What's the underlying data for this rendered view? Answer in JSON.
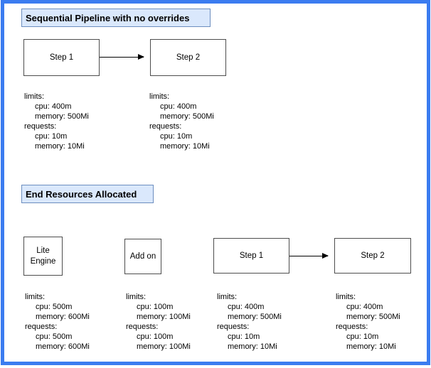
{
  "diagram": {
    "frame_color": "#3b7cf0",
    "title_fill": "#dae8fc",
    "title_border": "#6c8ebf",
    "node_border": "#4d4d4d"
  },
  "section1": {
    "title": "Sequential Pipeline with no overrides",
    "boxes": [
      {
        "label": "Step 1"
      },
      {
        "label": "Step 2"
      }
    ],
    "resources": [
      {
        "limits_label": "limits:",
        "limits": [
          "cpu: 400m",
          "memory: 500Mi"
        ],
        "requests_label": "requests:",
        "requests": [
          "cpu: 10m",
          "memory: 10Mi"
        ]
      },
      {
        "limits_label": "limits:",
        "limits": [
          "cpu: 400m",
          "memory: 500Mi"
        ],
        "requests_label": "requests:",
        "requests": [
          "cpu: 10m",
          "memory: 10Mi"
        ]
      }
    ]
  },
  "section2": {
    "title": "End Resources Allocated",
    "boxes": [
      {
        "label": "Lite Engine"
      },
      {
        "label": "Add on"
      },
      {
        "label": "Step 1"
      },
      {
        "label": "Step 2"
      }
    ],
    "resources": [
      {
        "limits_label": "limits:",
        "limits": [
          "cpu: 500m",
          "memory: 600Mi"
        ],
        "requests_label": "requests:",
        "requests": [
          "cpu: 500m",
          "memory: 600Mi"
        ]
      },
      {
        "limits_label": "limits:",
        "limits": [
          "cpu: 100m",
          "memory: 100Mi"
        ],
        "requests_label": "requests:",
        "requests": [
          "cpu: 100m",
          "memory: 100Mi"
        ]
      },
      {
        "limits_label": "limits:",
        "limits": [
          "cpu: 400m",
          "memory: 500Mi"
        ],
        "requests_label": "requests:",
        "requests": [
          "cpu: 10m",
          "memory: 10Mi"
        ]
      },
      {
        "limits_label": "limits:",
        "limits": [
          "cpu: 400m",
          "memory: 500Mi"
        ],
        "requests_label": "requests:",
        "requests": [
          "cpu: 10m",
          "memory: 10Mi"
        ]
      }
    ]
  }
}
